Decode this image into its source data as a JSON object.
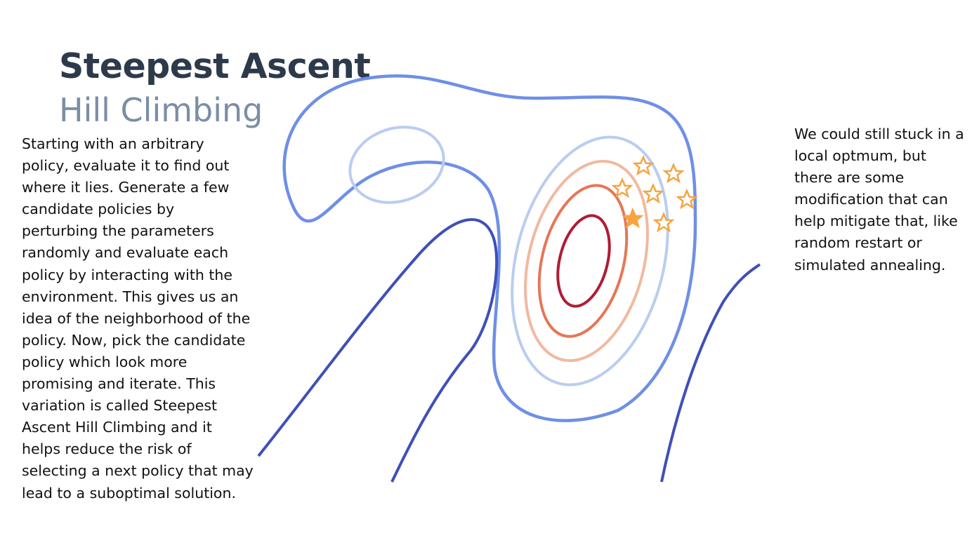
{
  "title": {
    "main": "Steepest Ascent",
    "sub": "Hill Climbing"
  },
  "left_text": "Starting with an arbitrary policy, evaluate it to find out where it lies. Generate a few candidate policies by perturbing the parameters randomly and evaluate each policy by interacting with the environment. This gives us an idea of the neighborhood of the policy. Now, pick the candidate policy which look more promising and iterate. This variation is called Steepest Ascent Hill Climbing and it helps reduce the risk of selecting a next policy that may lead to a suboptimal solution.",
  "right_text": "We could still stuck in a local optmum, but there are some modification that can help mitigate that, like random restart or simulated annealing.",
  "colors": {
    "title": "#2d3a4a",
    "subtitle": "#7b8ea5",
    "contour_outer": "#6f8fe6",
    "contour_light_blue": "#b9cdf0",
    "contour_peach": "#f1b9a0",
    "contour_orange": "#e57757",
    "contour_red": "#b01c34",
    "contour_dark_blue": "#3f4fb8",
    "star": "#f7a440"
  },
  "icons": {
    "current_policy": "filled-star-icon",
    "candidate_policy": "outline-star-icon"
  }
}
